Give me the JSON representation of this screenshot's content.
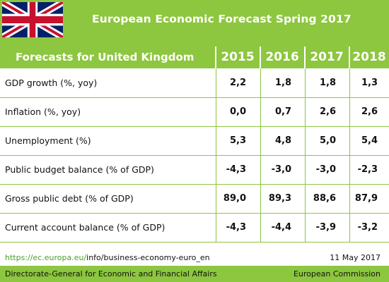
{
  "header": {
    "title": "European Economic Forecast Spring 2017",
    "flag_icon": "united-kingdom-flag"
  },
  "table": {
    "header_label": "Forecasts for United Kingdom",
    "years": [
      "2015",
      "2016",
      "2017",
      "2018"
    ],
    "rows": [
      {
        "label": "GDP growth (%, yoy)",
        "values": [
          "2,2",
          "1,8",
          "1,8",
          "1,3"
        ]
      },
      {
        "label": "Inflation (%, yoy)",
        "values": [
          "0,0",
          "0,7",
          "2,6",
          "2,6"
        ]
      },
      {
        "label": "Unemployment (%)",
        "values": [
          "5,3",
          "4,8",
          "5,0",
          "5,4"
        ]
      },
      {
        "label": "Public budget balance (% of GDP)",
        "values": [
          "-4,3",
          "-3,0",
          "-3,0",
          "-2,3"
        ]
      },
      {
        "label": "Gross public debt (% of GDP)",
        "values": [
          "89,0",
          "89,3",
          "88,6",
          "87,9"
        ]
      },
      {
        "label": "Current account balance (% of GDP)",
        "values": [
          "-4,3",
          "-4,4",
          "-3,9",
          "-3,2"
        ]
      }
    ]
  },
  "source": {
    "link_part": "https://ec.europa.eu/",
    "rest_part": "info/business-economy-euro_en",
    "date": "11 May 2017"
  },
  "footer": {
    "left": "Directorate-General for Economic and Financial Affairs",
    "right": "European Commission"
  },
  "colors": {
    "accent": "#8dc63f",
    "link": "#4aa02c"
  }
}
